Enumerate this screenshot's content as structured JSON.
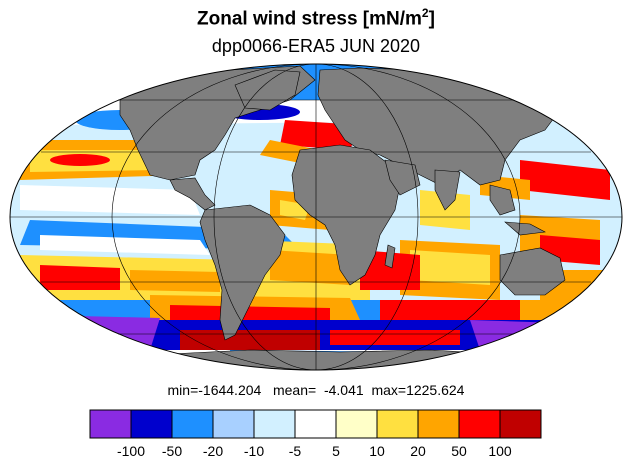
{
  "title": {
    "main": "Zonal wind stress [mN/m",
    "exponent": "2",
    "close": "]",
    "subtitle": "dpp0066-ERA5  JUN 2020"
  },
  "stats": {
    "min_label": "min=",
    "min": "-1644.204",
    "mean_label": "mean=",
    "mean": "-4.041",
    "max_label": "max=",
    "max": "1225.624"
  },
  "map": {
    "projection": "Mollweide",
    "center_longitude": 0,
    "land_color": "#7f7f7f",
    "coastline_color": "#000000",
    "graticule_color": "#000000",
    "graticule_longitudes": [
      -120,
      -60,
      0,
      60,
      120
    ],
    "graticule_latitudes": [
      -60,
      -30,
      0,
      30,
      60
    ]
  },
  "colorbar": {
    "labels": [
      "-100",
      "-50",
      "-20",
      "-10",
      "-5",
      "5",
      "10",
      "20",
      "50",
      "100"
    ],
    "colors": [
      "#8a2be2",
      "#0000cd",
      "#1e90ff",
      "#a8d0ff",
      "#d2f0ff",
      "#ffffff",
      "#ffffc8",
      "#ffe040",
      "#ffa500",
      "#ff0000",
      "#c00000"
    ]
  }
}
